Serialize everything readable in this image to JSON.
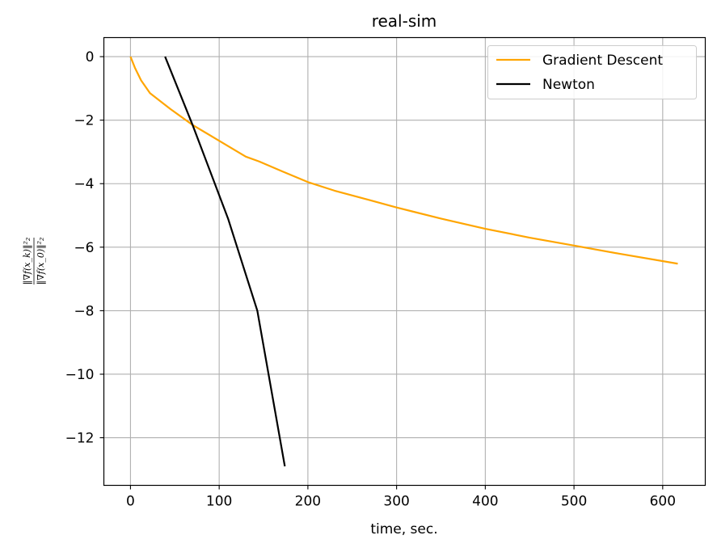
{
  "chart_data": {
    "type": "line",
    "title": "real-sim",
    "xlabel": "time, sec.",
    "ylabel": {
      "numerator": "‖∇f(x_k)‖²₂",
      "denominator": "‖∇f(x_0)‖²₂"
    },
    "xlim": [
      -30,
      648
    ],
    "ylim": [
      -13.5,
      0.6
    ],
    "xticks": [
      0,
      100,
      200,
      300,
      400,
      500,
      600
    ],
    "yticks": [
      0,
      -2,
      -4,
      -6,
      -8,
      -10,
      -12
    ],
    "xtick_labels": [
      "0",
      "100",
      "200",
      "300",
      "400",
      "500",
      "600"
    ],
    "ytick_labels": [
      "0",
      "−2",
      "−4",
      "−6",
      "−8",
      "−10",
      "−12"
    ],
    "grid": true,
    "legend_position": "top-right",
    "series": [
      {
        "name": "Gradient Descent",
        "color": "#ffa500",
        "x": [
          0,
          5,
          12,
          22,
          45,
          70,
          100,
          130,
          145,
          170,
          200,
          230,
          270,
          300,
          350,
          400,
          450,
          500,
          550,
          617
        ],
        "y": [
          0,
          -0.35,
          -0.75,
          -1.15,
          -1.65,
          -2.15,
          -2.65,
          -3.15,
          -3.3,
          -3.6,
          -3.95,
          -4.22,
          -4.52,
          -4.75,
          -5.1,
          -5.42,
          -5.7,
          -5.95,
          -6.2,
          -6.52
        ]
      },
      {
        "name": "Newton",
        "color": "#000000",
        "x": [
          39,
          70,
          110,
          143,
          174
        ],
        "y": [
          0,
          -2.15,
          -5.1,
          -8.0,
          -12.9
        ]
      }
    ]
  }
}
